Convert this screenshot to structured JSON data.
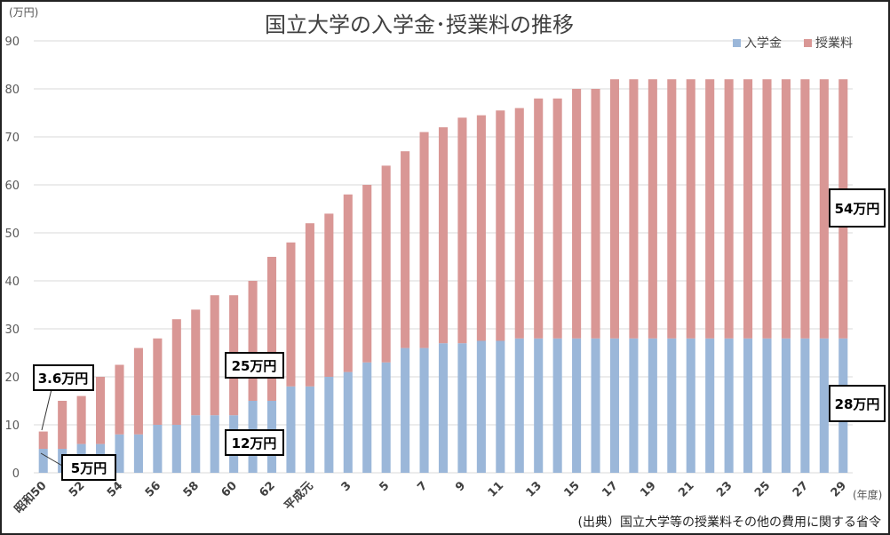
{
  "chart_data": {
    "type": "bar",
    "stacked": true,
    "title": "国立大学の入学金･授業料の推移",
    "yunit": "(万円)",
    "xunit": "(年度)",
    "ylim": [
      0,
      90
    ],
    "yticks": [
      0,
      10,
      20,
      30,
      40,
      50,
      60,
      70,
      80,
      90
    ],
    "grid": true,
    "legend_position": "top-right",
    "colors": {
      "nyugakukin": "#9bb7d9",
      "jugyoryo": "#d99795",
      "grid": "#d9d9d9"
    },
    "categories": [
      "昭和50",
      "51",
      "52",
      "53",
      "54",
      "55",
      "56",
      "57",
      "58",
      "59",
      "60",
      "61",
      "62",
      "63",
      "平成元",
      "2",
      "3",
      "4",
      "5",
      "6",
      "7",
      "8",
      "9",
      "10",
      "11",
      "12",
      "13",
      "14",
      "15",
      "16",
      "17",
      "18",
      "19",
      "20",
      "21",
      "22",
      "23",
      "24",
      "25",
      "26",
      "27",
      "28",
      "29"
    ],
    "tick_labels": [
      "昭和50",
      "",
      "52",
      "",
      "54",
      "",
      "56",
      "",
      "58",
      "",
      "60",
      "",
      "62",
      "",
      "平成元",
      "",
      "3",
      "",
      "5",
      "",
      "7",
      "",
      "9",
      "",
      "11",
      "",
      "13",
      "",
      "15",
      "",
      "17",
      "",
      "19",
      "",
      "21",
      "",
      "23",
      "",
      "25",
      "",
      "27",
      "",
      "29"
    ],
    "series": [
      {
        "name": "入学金",
        "values": [
          5,
          5,
          6,
          6,
          8,
          8,
          10,
          10,
          12,
          12,
          12,
          15,
          15,
          18,
          18,
          20,
          21,
          23,
          23,
          26,
          26,
          27,
          27,
          27.5,
          27.5,
          28,
          28,
          28,
          28,
          28,
          28,
          28,
          28,
          28,
          28,
          28,
          28,
          28,
          28,
          28,
          28,
          28,
          28
        ]
      },
      {
        "name": "授業料",
        "values": [
          3.6,
          10,
          10,
          14,
          14.5,
          18,
          18,
          22,
          22,
          25,
          25,
          25,
          30,
          30,
          34,
          34,
          37,
          37,
          41,
          41,
          45,
          45,
          47,
          47,
          48,
          48,
          50,
          50,
          52,
          52,
          54,
          54,
          54,
          54,
          54,
          54,
          54,
          54,
          54,
          54,
          54,
          54,
          54
        ]
      }
    ],
    "annotations": [
      "3.6万円",
      "5万円",
      "25万円",
      "12万円",
      "54万円",
      "28万円"
    ],
    "source": "(出典）国立大学等の授業料その他の費用に関する省令"
  }
}
